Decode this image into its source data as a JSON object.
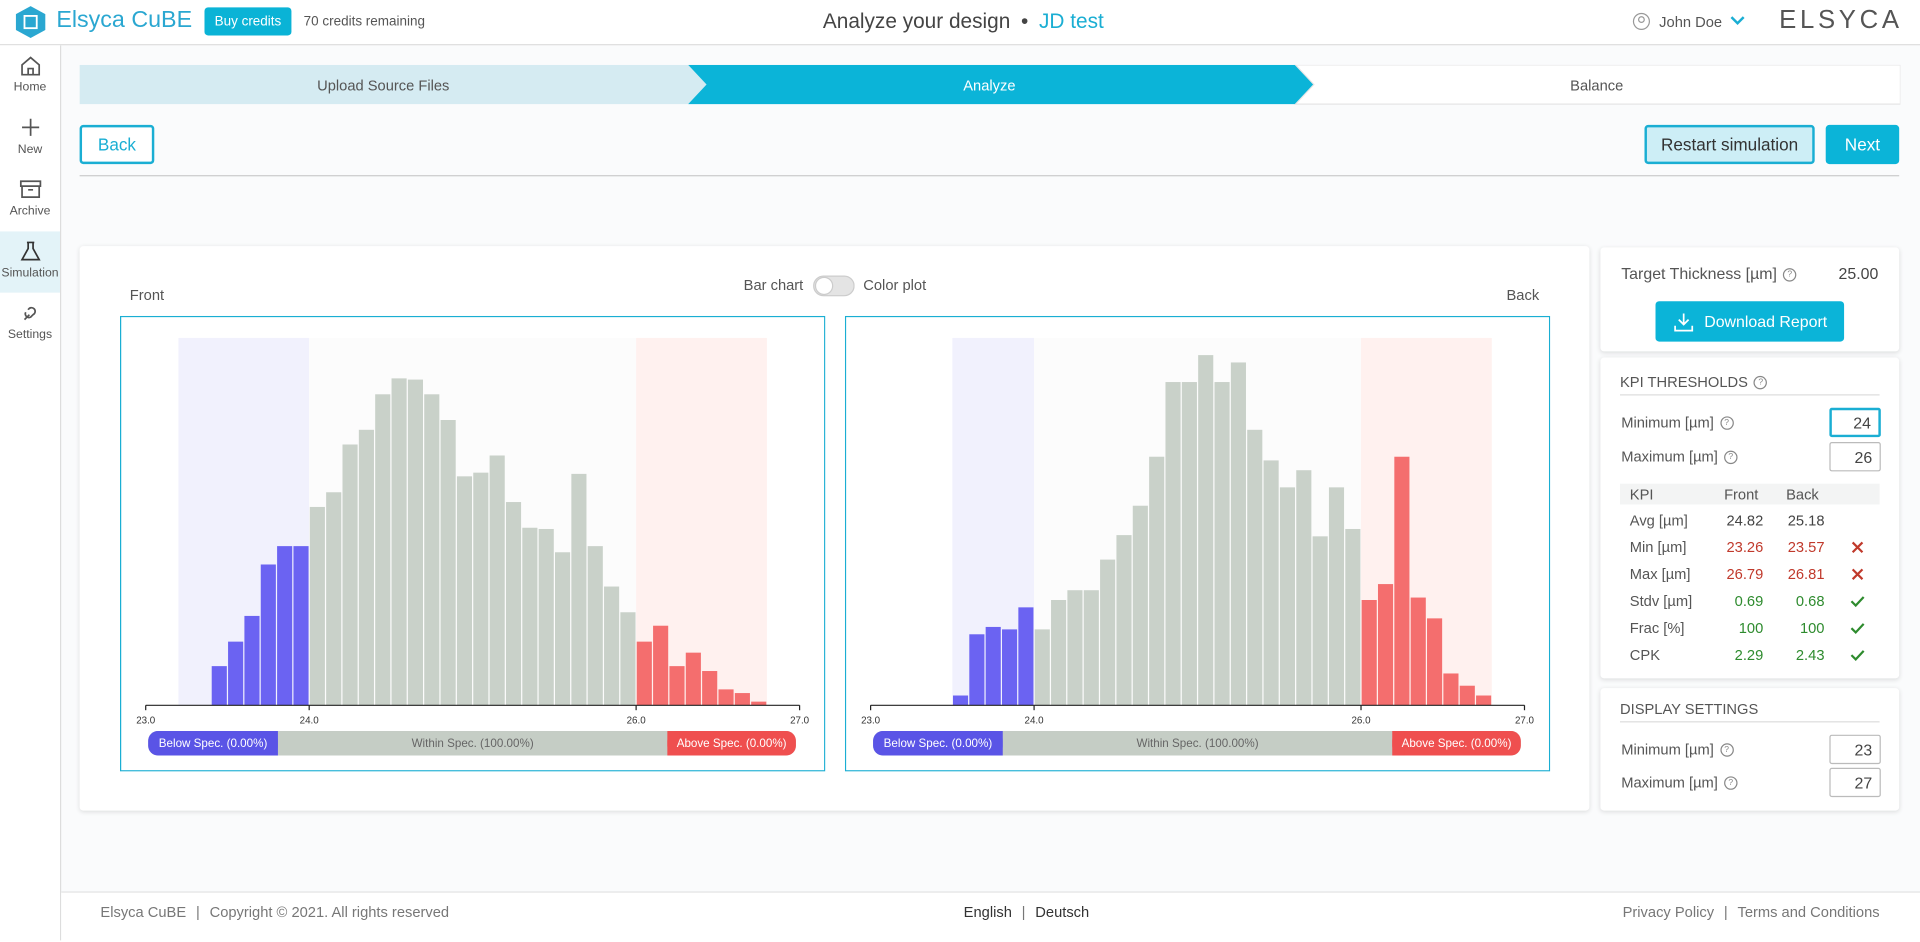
{
  "header": {
    "logo": "Elsyca CuBE",
    "buy": "Buy credits",
    "credits": "70 credits remaining",
    "title": "Analyze your design",
    "separator": "•",
    "project": "JD test",
    "user": "John Doe",
    "brand": "ELSYCA"
  },
  "sidebar": [
    "Home",
    "New",
    "Archive",
    "Simulation",
    "Settings"
  ],
  "steps": [
    "Upload Source Files",
    "Analyze",
    "Balance"
  ],
  "buttons": {
    "back": "Back",
    "restart": "Restart simulation",
    "next": "Next"
  },
  "toggle": {
    "left": "Bar chart",
    "right": "Color plot"
  },
  "chart_data": [
    {
      "type": "histogram",
      "title": "Front",
      "xlim": [
        23,
        27
      ],
      "ylim": [
        0,
        300
      ],
      "xticks": [
        {
          "value": 23,
          "label": "23.0"
        },
        {
          "value": 24,
          "label": "24.0"
        },
        {
          "value": 26,
          "label": "26.0"
        },
        {
          "value": 27,
          "label": "27.0"
        }
      ],
      "bins": [
        23.2,
        23.3,
        23.4,
        23.5,
        23.6,
        23.7,
        23.8,
        23.9,
        24,
        24.1,
        24.2,
        24.3,
        24.4,
        24.5,
        24.6,
        24.7,
        24.8,
        24.9,
        25,
        25.1,
        25.2,
        25.3,
        25.4,
        25.5,
        25.6,
        25.7,
        25.8,
        25.9,
        26,
        26.1,
        26.2,
        26.3,
        26.4,
        26.5,
        26.6,
        26.7,
        26.8
      ],
      "counts": [
        0,
        0,
        32,
        52,
        73,
        115,
        130,
        130,
        162,
        174,
        213,
        225,
        254,
        267,
        266,
        254,
        233,
        187,
        190,
        204,
        166,
        145,
        144,
        125,
        189,
        130,
        97,
        76,
        52,
        65,
        32,
        43,
        28,
        13,
        10,
        3
      ],
      "colors": {
        "below": "#6b63f2",
        "within": "#c9d1c9",
        "above": "#f46e6e"
      },
      "spec_labels": [
        "Below Spec. (0.00%)",
        "Within Spec. (100.00%)",
        "Above Spec. (0.00%)"
      ]
    },
    {
      "type": "histogram",
      "title": "Back",
      "xlim": [
        23,
        27
      ],
      "ylim": [
        0,
        300
      ],
      "xticks": [
        {
          "value": 23,
          "label": "23.0"
        },
        {
          "value": 24,
          "label": "24.0"
        },
        {
          "value": 26,
          "label": "26.0"
        },
        {
          "value": 27,
          "label": "27.0"
        }
      ],
      "bins": [
        23.5,
        23.6,
        23.7,
        23.8,
        23.9,
        24,
        24.1,
        24.2,
        24.3,
        24.4,
        24.5,
        24.6,
        24.7,
        24.8,
        24.9,
        25,
        25.1,
        25.2,
        25.3,
        25.4,
        25.5,
        25.6,
        25.7,
        25.8,
        25.9,
        26,
        26.1,
        26.2,
        26.3,
        26.4,
        26.5,
        26.6,
        26.7,
        26.8
      ],
      "counts": [
        8,
        58,
        64,
        62,
        80,
        62,
        86,
        94,
        94,
        119,
        139,
        163,
        203,
        264,
        264,
        286,
        264,
        280,
        225,
        200,
        178,
        192,
        138,
        178,
        144,
        86,
        99,
        203,
        88,
        71,
        26,
        16,
        8
      ],
      "colors": {
        "below": "#6b63f2",
        "within": "#c9d1c9",
        "above": "#f46e6e"
      },
      "spec_labels": [
        "Below Spec. (0.00%)",
        "Within Spec. (100.00%)",
        "Above Spec. (0.00%)"
      ]
    }
  ],
  "target": {
    "label": "Target Thickness [µm]",
    "value": "25.00"
  },
  "download": "Download Report",
  "kpi": {
    "title": "KPI THRESHOLDS",
    "min_label": "Minimum [µm]",
    "min": 24,
    "max_label": "Maximum [µm]",
    "max": 26,
    "columns": [
      "KPI",
      "Front",
      "Back"
    ],
    "rows": [
      {
        "cells": [
          "Avg [µm]",
          "24.82",
          "25.18"
        ]
      },
      {
        "cells": [
          "Min [µm]",
          "23.26",
          "23.57"
        ],
        "status": "fail"
      },
      {
        "cells": [
          "Max [µm]",
          "26.79",
          "26.81"
        ],
        "status": "fail"
      },
      {
        "cells": [
          "Stdv [µm]",
          "0.69",
          "0.68"
        ],
        "status": "pass"
      },
      {
        "cells": [
          "Frac [%]",
          "100",
          "100"
        ],
        "status": "pass"
      },
      {
        "cells": [
          "CPK",
          "2.29",
          "2.43"
        ],
        "status": "pass"
      }
    ]
  },
  "display": {
    "title": "DISPLAY SETTINGS",
    "min_label": "Minimum [µm]",
    "min": 23,
    "max_label": "Maximum [µm]",
    "max": 27
  },
  "footer": {
    "brand": "Elsyca CuBE",
    "copyright": "Copyright © 2021. All rights reserved",
    "languages": [
      "English",
      "Deutsch"
    ],
    "links": [
      "Privacy Policy",
      "Terms and Conditions"
    ]
  }
}
